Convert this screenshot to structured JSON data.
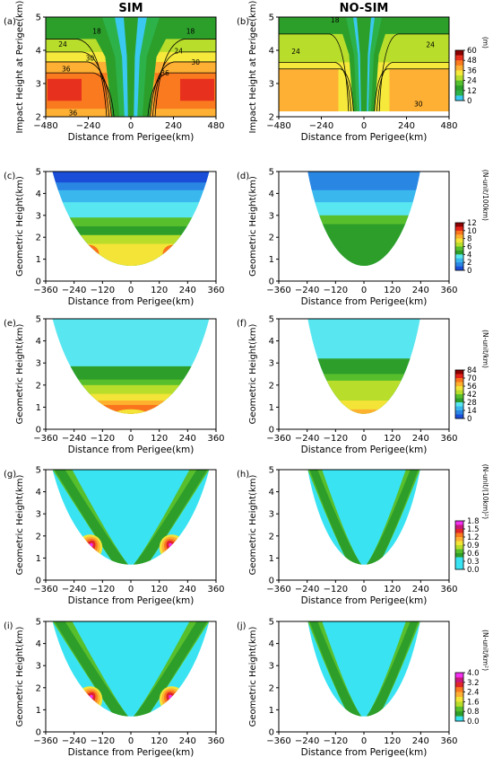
{
  "titles": {
    "left": "SIM",
    "right": "NO-SIM"
  },
  "panels": [
    {
      "id": "a",
      "label": "(a)",
      "row": 0,
      "col": 0,
      "kind": "cross",
      "sim": true,
      "xlabel": "Distance from Perigee(km)",
      "ylabel": "Impact Height at Perigee(km)",
      "xticks": [
        "−480",
        "−240",
        "0",
        "240",
        "480"
      ],
      "yticks": [
        "2",
        "3",
        "4",
        "5"
      ],
      "contour_labels": [
        "18",
        "18",
        "24",
        "24",
        "30",
        "30",
        "36",
        "36",
        "36"
      ]
    },
    {
      "id": "b",
      "label": "(b)",
      "row": 0,
      "col": 1,
      "kind": "cross",
      "sim": false,
      "xlabel": "Distance from Perigee(km)",
      "ylabel": "Impact Height at Perigee(km)",
      "xticks": [
        "−480",
        "−240",
        "0",
        "240",
        "480"
      ],
      "yticks": [
        "2",
        "3",
        "4",
        "5"
      ],
      "contour_labels": [
        "18",
        "24",
        "24",
        "30"
      ]
    },
    {
      "id": "c",
      "label": "(c)",
      "row": 1,
      "col": 0,
      "kind": "para",
      "sim": true,
      "xlabel": "Distance from Perigee(km)",
      "ylabel": "Geometric Height(km)",
      "xticks": [
        "−360",
        "−240",
        "−120",
        "0",
        "120",
        "240",
        "360"
      ],
      "yticks": [
        "0",
        "1",
        "2",
        "3",
        "4",
        "5"
      ]
    },
    {
      "id": "d",
      "label": "(d)",
      "row": 1,
      "col": 1,
      "kind": "para",
      "sim": false,
      "xlabel": "Distance from Perigee(km)",
      "ylabel": "Geometric Height(km)",
      "xticks": [
        "−360",
        "−240",
        "−120",
        "0",
        "120",
        "240",
        "360"
      ],
      "yticks": [
        "0",
        "1",
        "2",
        "3",
        "4",
        "5"
      ]
    },
    {
      "id": "e",
      "label": "(e)",
      "row": 2,
      "col": 0,
      "kind": "para",
      "sim": true,
      "xlabel": "Distance from Perigee(km)",
      "ylabel": "Geometric Height(km)",
      "xticks": [
        "−360",
        "−240",
        "−120",
        "0",
        "120",
        "240",
        "360"
      ],
      "yticks": [
        "0",
        "1",
        "2",
        "3",
        "4",
        "5"
      ]
    },
    {
      "id": "f",
      "label": "(f)",
      "row": 2,
      "col": 1,
      "kind": "para",
      "sim": false,
      "xlabel": "Distance from Perigee(km)",
      "ylabel": "Geometric Height(km)",
      "xticks": [
        "−360",
        "−240",
        "−120",
        "0",
        "120",
        "240",
        "360"
      ],
      "yticks": [
        "0",
        "1",
        "2",
        "3",
        "4",
        "5"
      ]
    },
    {
      "id": "g",
      "label": "(g)",
      "row": 3,
      "col": 0,
      "kind": "vee",
      "sim": true,
      "xlabel": "Distance from Perigee(km)",
      "ylabel": "Geometric Height(km)",
      "xticks": [
        "−360",
        "−240",
        "−120",
        "0",
        "120",
        "240",
        "360"
      ],
      "yticks": [
        "0",
        "1",
        "2",
        "3",
        "4",
        "5"
      ]
    },
    {
      "id": "h",
      "label": "(h)",
      "row": 3,
      "col": 1,
      "kind": "vee",
      "sim": false,
      "xlabel": "Distance from Perigee(km)",
      "ylabel": "Geometric Height(km)",
      "xticks": [
        "−360",
        "−240",
        "−120",
        "0",
        "120",
        "240",
        "360"
      ],
      "yticks": [
        "0",
        "1",
        "2",
        "3",
        "4",
        "5"
      ]
    },
    {
      "id": "i",
      "label": "(i)",
      "row": 4,
      "col": 0,
      "kind": "vee",
      "sim": true,
      "xlabel": "Distance from Perigee(km)",
      "ylabel": "Geometric Height(km)",
      "xticks": [
        "−360",
        "−240",
        "−120",
        "0",
        "120",
        "240",
        "360"
      ],
      "yticks": [
        "0",
        "1",
        "2",
        "3",
        "4",
        "5"
      ]
    },
    {
      "id": "j",
      "label": "(j)",
      "row": 4,
      "col": 1,
      "kind": "vee",
      "sim": false,
      "xlabel": "Distance from Perigee(km)",
      "ylabel": "Geometric Height(km)",
      "xticks": [
        "−360",
        "−240",
        "−120",
        "0",
        "120",
        "240",
        "360"
      ],
      "yticks": [
        "0",
        "1",
        "2",
        "3",
        "4",
        "5"
      ]
    }
  ],
  "colorbars": [
    {
      "row": 0,
      "label": "(m)",
      "ticks": [
        "60",
        "48",
        "36",
        "24",
        "12",
        "0"
      ],
      "colors": [
        "#8B0000",
        "#E8301E",
        "#F97A1F",
        "#FDB033",
        "#F6E93B",
        "#B8DE2B",
        "#55C02E",
        "#2C9F2B",
        "#2DB24A",
        "#3AC9F0"
      ]
    },
    {
      "row": 1,
      "label": "(N-unit/100km)",
      "ticks": [
        "12",
        "10",
        "8",
        "6",
        "4",
        "2",
        "0"
      ],
      "colors": [
        "#8B0000",
        "#E32219",
        "#F9741D",
        "#FDB12E",
        "#F3E437",
        "#B9DD2B",
        "#58BF2C",
        "#2E9E2A",
        "#58E6F0",
        "#3AB8EE",
        "#2A86E3",
        "#1B4ED8"
      ]
    },
    {
      "row": 2,
      "label": "(N-unit/km)",
      "ticks": [
        "84",
        "70",
        "56",
        "42",
        "28",
        "14",
        "0"
      ],
      "colors": [
        "#8B0000",
        "#E32219",
        "#F9741D",
        "#FDB12E",
        "#F3E437",
        "#B9DD2B",
        "#58BF2C",
        "#2E9E2A",
        "#58E6F0",
        "#3AB8EE",
        "#2A86E3",
        "#1B4ED8"
      ]
    },
    {
      "row": 3,
      "label": "(N-unit/(10km)²)",
      "ticks": [
        "1.8",
        "1.5",
        "1.2",
        "0.9",
        "0.6",
        "0.3",
        "0.0"
      ],
      "colors": [
        "#F230F0",
        "#C8197A",
        "#E0262A",
        "#F97A1F",
        "#FDB033",
        "#F3E437",
        "#B9DD2B",
        "#58BF2C",
        "#2E9E2A",
        "#3AE3F2",
        "#3AE3F2",
        "#3AE3F2"
      ]
    },
    {
      "row": 4,
      "label": "(N-unit/km²)",
      "ticks": [
        "4.0",
        "3.2",
        "2.4",
        "1.6",
        "0.8",
        "0.0"
      ],
      "colors": [
        "#F230F0",
        "#C8197A",
        "#E0262A",
        "#F97A1F",
        "#FDB033",
        "#F3E437",
        "#B9DD2B",
        "#58BF2C",
        "#2E9E2A",
        "#3AE3F2"
      ]
    }
  ],
  "chart_data": [
    {
      "type": "heatmap",
      "panel": "a",
      "title": "SIM",
      "xlabel": "Distance from Perigee(km)",
      "ylabel": "Impact Height at Perigee(km)",
      "xlim": [
        -480,
        480
      ],
      "ylim": [
        2,
        5
      ],
      "colorbar_unit": "(m)",
      "colorbar_range": [
        0,
        60
      ],
      "contour_levels": [
        18,
        24,
        30,
        36
      ]
    },
    {
      "type": "heatmap",
      "panel": "b",
      "title": "NO-SIM",
      "xlabel": "Distance from Perigee(km)",
      "ylabel": "Impact Height at Perigee(km)",
      "xlim": [
        -480,
        480
      ],
      "ylim": [
        2,
        5
      ],
      "colorbar_unit": "(m)",
      "colorbar_range": [
        0,
        60
      ],
      "contour_levels": [
        18,
        24,
        30
      ]
    },
    {
      "type": "heatmap",
      "panel": "c",
      "xlabel": "Distance from Perigee(km)",
      "ylabel": "Geometric Height(km)",
      "xlim": [
        -360,
        360
      ],
      "ylim": [
        0,
        5
      ],
      "colorbar_unit": "(N-unit/100km)",
      "colorbar_range": [
        0,
        12
      ]
    },
    {
      "type": "heatmap",
      "panel": "d",
      "xlabel": "Distance from Perigee(km)",
      "ylabel": "Geometric Height(km)",
      "xlim": [
        -360,
        360
      ],
      "ylim": [
        0,
        5
      ],
      "colorbar_unit": "(N-unit/100km)",
      "colorbar_range": [
        0,
        12
      ]
    },
    {
      "type": "heatmap",
      "panel": "e",
      "xlabel": "Distance from Perigee(km)",
      "ylabel": "Geometric Height(km)",
      "xlim": [
        -360,
        360
      ],
      "ylim": [
        0,
        5
      ],
      "colorbar_unit": "(N-unit/km)",
      "colorbar_range": [
        0,
        84
      ]
    },
    {
      "type": "heatmap",
      "panel": "f",
      "xlabel": "Distance from Perigee(km)",
      "ylabel": "Geometric Height(km)",
      "xlim": [
        -360,
        360
      ],
      "ylim": [
        0,
        5
      ],
      "colorbar_unit": "(N-unit/km)",
      "colorbar_range": [
        0,
        84
      ]
    },
    {
      "type": "heatmap",
      "panel": "g",
      "xlabel": "Distance from Perigee(km)",
      "ylabel": "Geometric Height(km)",
      "xlim": [
        -360,
        360
      ],
      "ylim": [
        0,
        5
      ],
      "colorbar_unit": "(N-unit/(10km)²)",
      "colorbar_range": [
        0.0,
        1.8
      ]
    },
    {
      "type": "heatmap",
      "panel": "h",
      "xlabel": "Distance from Perigee(km)",
      "ylabel": "Geometric Height(km)",
      "xlim": [
        -360,
        360
      ],
      "ylim": [
        0,
        5
      ],
      "colorbar_unit": "(N-unit/(10km)²)",
      "colorbar_range": [
        0.0,
        1.8
      ]
    },
    {
      "type": "heatmap",
      "panel": "i",
      "xlabel": "Distance from Perigee(km)",
      "ylabel": "Geometric Height(km)",
      "xlim": [
        -360,
        360
      ],
      "ylim": [
        0,
        5
      ],
      "colorbar_unit": "(N-unit/km²)",
      "colorbar_range": [
        0.0,
        4.0
      ]
    },
    {
      "type": "heatmap",
      "panel": "j",
      "xlabel": "Distance from Perigee(km)",
      "ylabel": "Geometric Height(km)",
      "xlim": [
        -360,
        360
      ],
      "ylim": [
        0,
        5
      ],
      "colorbar_unit": "(N-unit/km²)",
      "colorbar_range": [
        0.0,
        4.0
      ]
    }
  ]
}
